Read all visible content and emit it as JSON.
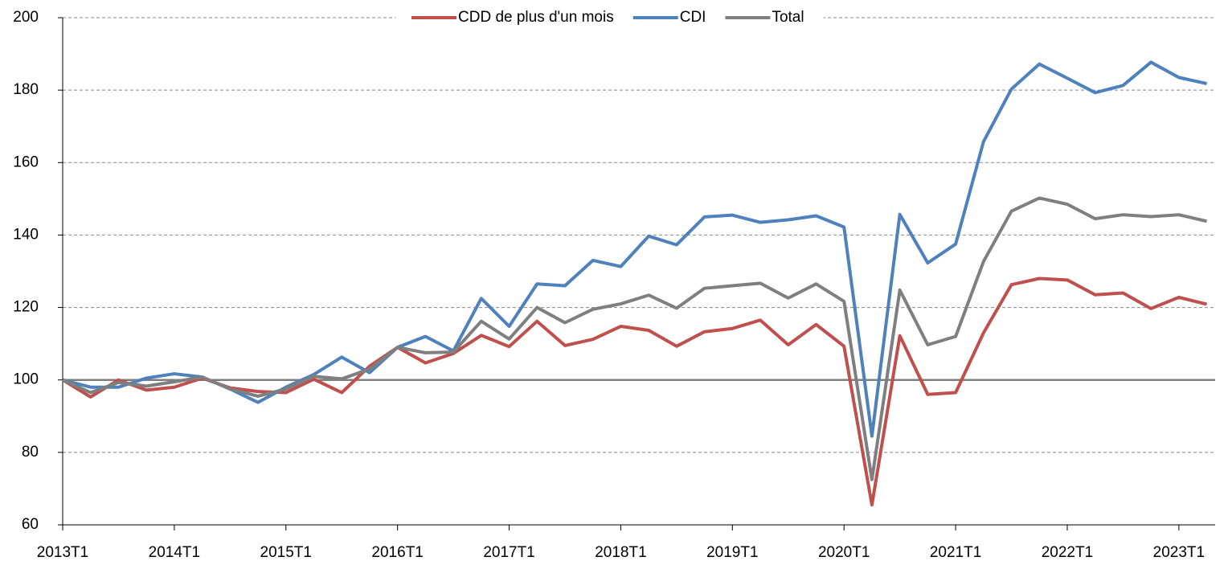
{
  "chart_data": {
    "type": "line",
    "categories": [
      "2013T1",
      null,
      null,
      null,
      "2014T1",
      null,
      null,
      null,
      "2015T1",
      null,
      null,
      null,
      "2016T1",
      null,
      null,
      null,
      "2017T1",
      null,
      null,
      null,
      "2018T1",
      null,
      null,
      null,
      "2019T1",
      null,
      null,
      null,
      "2020T1",
      null,
      null,
      null,
      "2021T1",
      null,
      null,
      null,
      "2022T1",
      null,
      null,
      null,
      "2023T1",
      null
    ],
    "series": [
      {
        "name": "CDD de plus d'un mois",
        "color": "#c0504d",
        "values": [
          100,
          95.3,
          100,
          97.2,
          98,
          100.5,
          97.8,
          96.8,
          96.5,
          100.2,
          96.5,
          103.8,
          109,
          104.7,
          107.3,
          112.3,
          109.2,
          116.2,
          109.5,
          111.2,
          114.8,
          113.7,
          109.3,
          113.3,
          114.2,
          116.5,
          109.7,
          115.3,
          109.3,
          65.5,
          112.2,
          96,
          96.5,
          113,
          126.3,
          128,
          127.6,
          123.5,
          124,
          119.7,
          122.8,
          120.9
        ]
      },
      {
        "name": "CDI",
        "color": "#4f81bd",
        "values": [
          100,
          98,
          98,
          100.5,
          101.7,
          100.8,
          97.5,
          93.8,
          98,
          101.5,
          106.3,
          102,
          109,
          112,
          108,
          122.5,
          114.8,
          126.5,
          126,
          133,
          131.3,
          139.7,
          137.3,
          145,
          145.5,
          143.5,
          144.2,
          145.3,
          142.2,
          84.5,
          145.7,
          132.3,
          137.5,
          165.8,
          180.3,
          187.2,
          183.3,
          179.3,
          181.3,
          187.7,
          183.5,
          181.8
        ]
      },
      {
        "name": "Total",
        "color": "#7f7f7f",
        "values": [
          100,
          96.5,
          99.3,
          98.3,
          99.5,
          100.8,
          97.5,
          95.5,
          97.5,
          101,
          100.3,
          103,
          109,
          107.5,
          107.7,
          116.2,
          111.3,
          120,
          115.8,
          119.5,
          121,
          123.4,
          119.8,
          125.3,
          126,
          126.7,
          122.6,
          126.5,
          121.7,
          72.5,
          124.8,
          109.7,
          112,
          132.7,
          146.6,
          150.2,
          148.5,
          144.5,
          145.6,
          145.1,
          145.6,
          143.8
        ]
      }
    ],
    "ylim": [
      60,
      200
    ],
    "yticks": [
      60,
      80,
      100,
      120,
      140,
      160,
      180,
      200
    ],
    "grid": true,
    "reference_line": 100,
    "legend": "top"
  }
}
